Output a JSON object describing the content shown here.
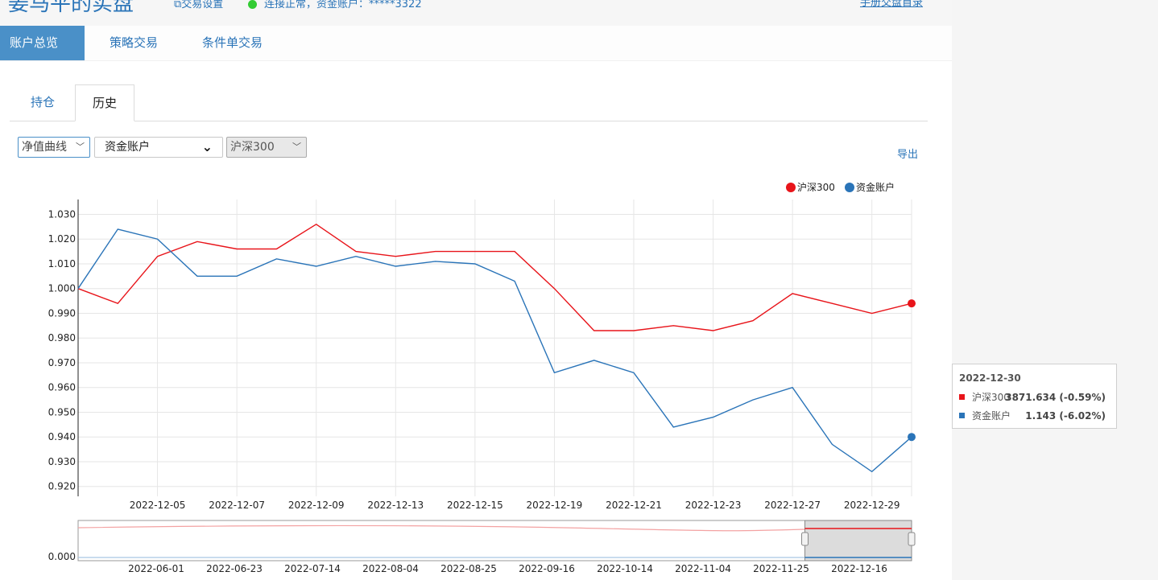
{
  "header": {
    "title": "姜马平的实盘",
    "trade_settings": "交易设置",
    "connection_status": "连接正常，资金账户：*****3322",
    "top_right_link": "手册交盘首录"
  },
  "nav": {
    "items": [
      "账户总览",
      "策略交易",
      "条件单交易"
    ],
    "active": 0
  },
  "tabs": {
    "items": [
      "持仓",
      "历史"
    ],
    "active": 1
  },
  "filters": {
    "curve_select": "净值曲线",
    "account_select": "资金账户",
    "benchmark_select": "沪深300"
  },
  "export_label": "导出",
  "colors": {
    "accent": "#4a90c8",
    "hs300": "#e8141a",
    "account": "#2a74b8"
  },
  "chart_data": {
    "type": "line",
    "legend": {
      "placement": "top-right",
      "items": [
        "沪深300",
        "资金账户"
      ]
    },
    "x_ticks": [
      "2022-12-05",
      "2022-12-07",
      "2022-12-09",
      "2022-12-13",
      "2022-12-15",
      "2022-12-19",
      "2022-12-21",
      "2022-12-23",
      "2022-12-27",
      "2022-12-29"
    ],
    "x": [
      "2022-12-01",
      "2022-12-02",
      "2022-12-05",
      "2022-12-06",
      "2022-12-07",
      "2022-12-08",
      "2022-12-09",
      "2022-12-12",
      "2022-12-13",
      "2022-12-14",
      "2022-12-15",
      "2022-12-16",
      "2022-12-19",
      "2022-12-20",
      "2022-12-21",
      "2022-12-22",
      "2022-12-23",
      "2022-12-26",
      "2022-12-27",
      "2022-12-28",
      "2022-12-29",
      "2022-12-30"
    ],
    "ylim": [
      0.916,
      1.036
    ],
    "y_ticks": [
      0.92,
      0.93,
      0.94,
      0.95,
      0.96,
      0.97,
      0.98,
      0.99,
      1.0,
      1.01,
      1.02,
      1.03
    ],
    "grid": true,
    "series": [
      {
        "name": "沪深300",
        "color": "#e8141a",
        "values": [
          1.0,
          0.994,
          1.013,
          1.019,
          1.016,
          1.016,
          1.026,
          1.015,
          1.013,
          1.015,
          1.015,
          1.015,
          1.0,
          0.983,
          0.983,
          0.985,
          0.983,
          0.987,
          0.998,
          0.994,
          0.99,
          0.994
        ]
      },
      {
        "name": "资金账户",
        "color": "#2a74b8",
        "values": [
          1.0,
          1.024,
          1.02,
          1.005,
          1.005,
          1.012,
          1.009,
          1.013,
          1.009,
          1.011,
          1.01,
          1.003,
          0.966,
          0.971,
          0.966,
          0.944,
          0.948,
          0.955,
          0.96,
          0.937,
          0.926,
          0.94
        ]
      }
    ],
    "navigator": {
      "y_label": "0.000",
      "x_ticks": [
        "2022-06-01",
        "2022-06-23",
        "2022-07-14",
        "2022-08-04",
        "2022-08-25",
        "2022-09-16",
        "2022-10-14",
        "2022-11-04",
        "2022-11-25",
        "2022-12-16"
      ],
      "range_start": 0.872,
      "range_end": 1.0
    }
  },
  "tooltip": {
    "date": "2022-12-30",
    "rows": [
      {
        "name": "沪深300",
        "value": "3871.634 (-0.59%)",
        "color": "#e8141a"
      },
      {
        "name": "资金账户",
        "value": "1.143 (-6.02%)",
        "color": "#2a74b8"
      }
    ]
  }
}
